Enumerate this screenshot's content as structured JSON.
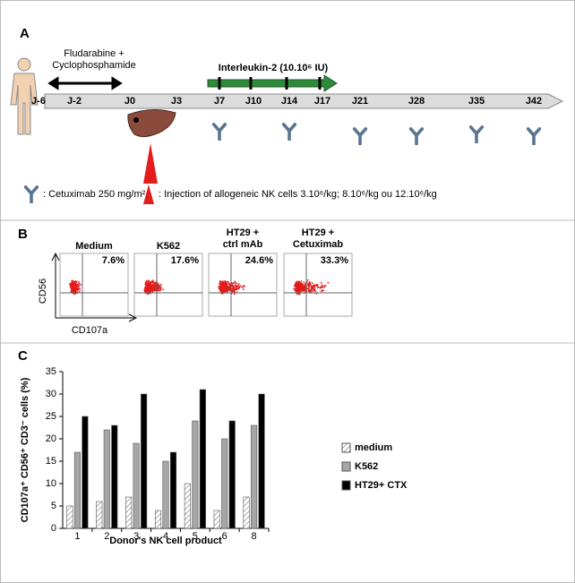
{
  "panel_a": {
    "label": "A",
    "chemo": [
      "Fludarabine +",
      "Cyclophosphamide"
    ],
    "il2": "Interleukin-2 (10.10⁶ IU)",
    "days": [
      "J-6",
      "J-2",
      "J0",
      "J3",
      "J7",
      "J10",
      "J14",
      "J17",
      "J21",
      "J28",
      "J35",
      "J42"
    ],
    "legend_cetuximab": ": Cetuximab 250 mg/m²",
    "legend_nk": ": Injection of allogeneic NK cells  3.10⁶/kg; 8.10⁶/kg ou 12.10⁶/kg"
  },
  "panel_b": {
    "label": "B",
    "y_label": "CD56",
    "x_label": "CD107a",
    "plots": [
      {
        "title": [
          "Medium"
        ],
        "percent": "7.6%"
      },
      {
        "title": [
          "K562"
        ],
        "percent": "17.6%"
      },
      {
        "title": [
          "HT29 +",
          "ctrl mAb"
        ],
        "percent": "24.6%"
      },
      {
        "title": [
          "HT29 +",
          "Cetuximab"
        ],
        "percent": "33.3%"
      }
    ]
  },
  "chart_data": {
    "type": "bar",
    "panel_label": "C",
    "x_label": "Donor's NK cell product",
    "y_label": "CD107a⁺ CD56⁺ CD3⁻ cells (%)",
    "categories": [
      "1",
      "2",
      "3",
      "4",
      "5",
      "6",
      "8"
    ],
    "series": [
      {
        "name": "medium",
        "color": "#ffffff",
        "hatch": true,
        "values": [
          5,
          6,
          7,
          4,
          10,
          4,
          7
        ]
      },
      {
        "name": "K562",
        "color": "#a6a6a6",
        "values": [
          17,
          22,
          19,
          15,
          24,
          20,
          23
        ]
      },
      {
        "name": "HT29+ CTX",
        "color": "#000000",
        "values": [
          25,
          23,
          30,
          17,
          31,
          24,
          30
        ]
      }
    ],
    "ylim": [
      0,
      35
    ],
    "yticks": [
      0,
      5,
      10,
      15,
      20,
      25,
      30,
      35
    ]
  }
}
